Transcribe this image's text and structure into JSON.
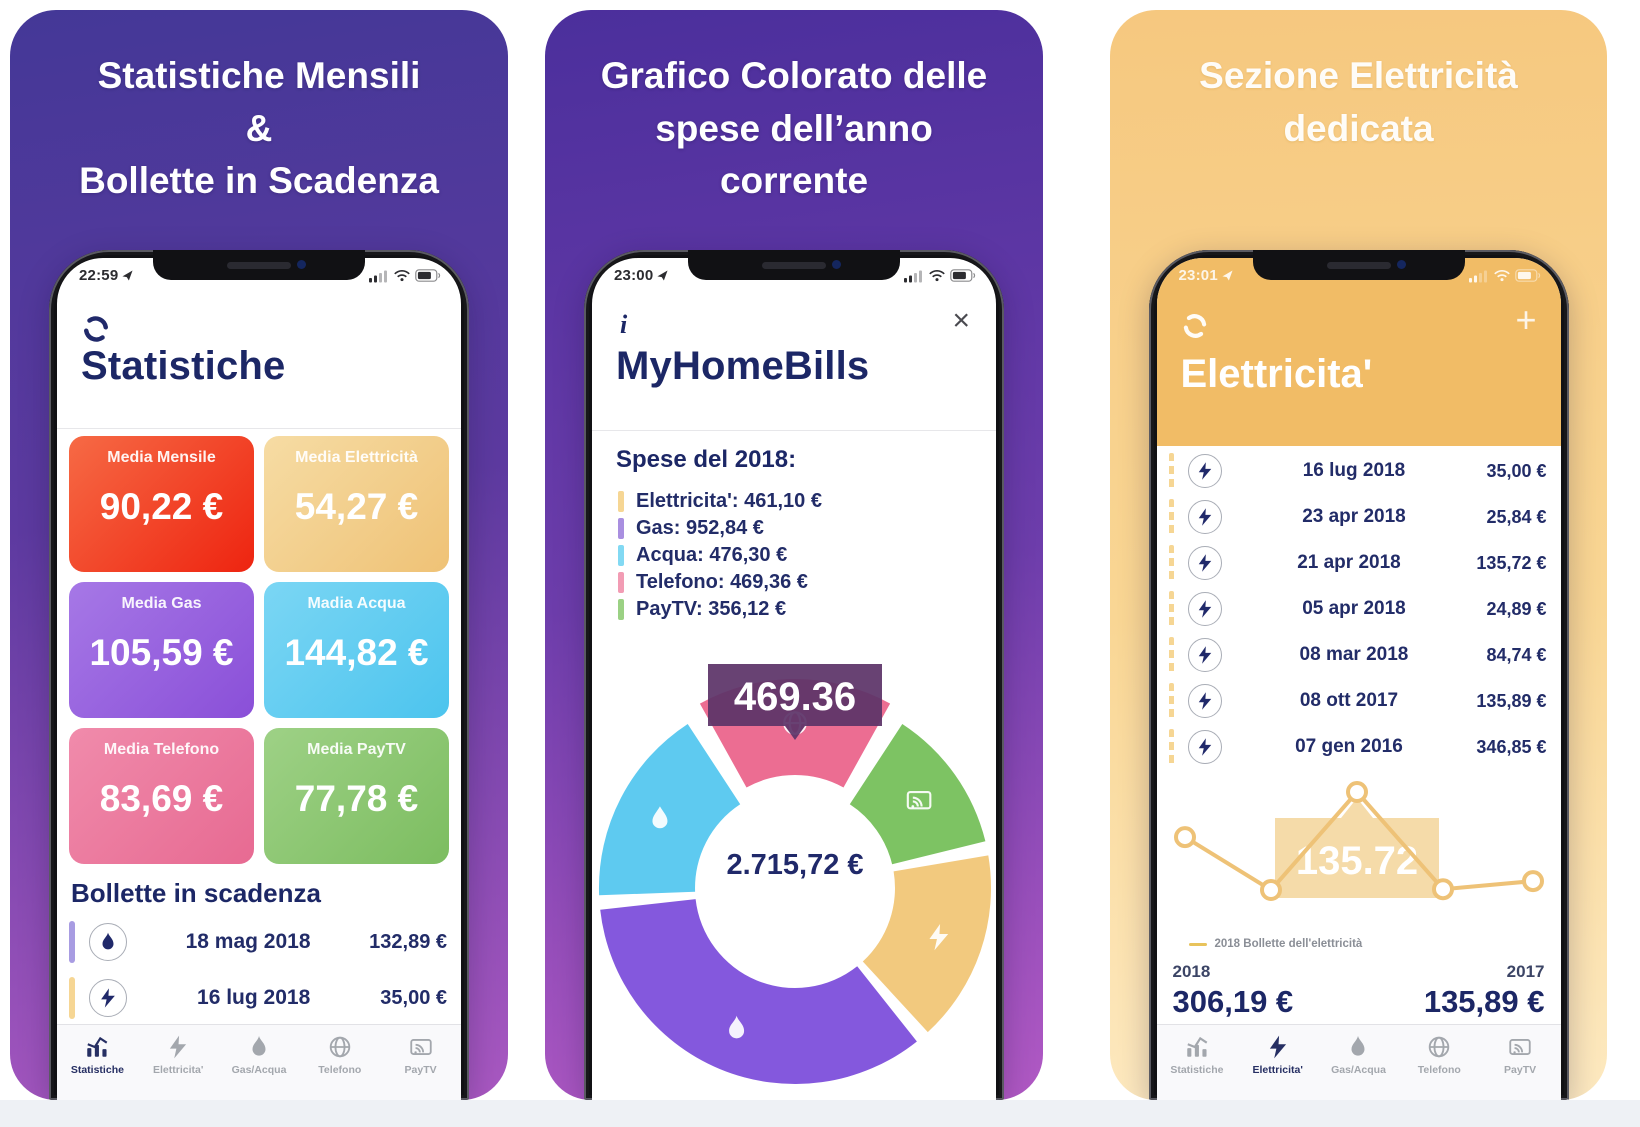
{
  "colors": {
    "navy": "#20296a",
    "tab_active": "#262f63",
    "tab_inactive": "#a3a7ad",
    "accent_yellow": "#eec277"
  },
  "tab_bar_items": [
    {
      "label": "Statistiche",
      "icon": "stats-icon"
    },
    {
      "label": "Elettricita'",
      "icon": "lightning-icon"
    },
    {
      "label": "Gas/Acqua",
      "icon": "flame-icon"
    },
    {
      "label": "Telefono",
      "icon": "globe-icon"
    },
    {
      "label": "PayTV",
      "icon": "tv-icon"
    }
  ],
  "panel1": {
    "headline_lines": [
      "Statistiche Mensili",
      "&",
      "Bollette in Scadenza"
    ],
    "phone": {
      "status_time": "22:59",
      "screen_title": "Statistiche",
      "stat_cards": [
        {
          "label": "Media Mensile",
          "value": "90,22 €",
          "color_top": "#f66a45",
          "color_bottom": "#ee2410"
        },
        {
          "label": "Media Elettricità",
          "value": "54,27 €",
          "color_top": "#f6dca4",
          "color_bottom": "#efc276"
        },
        {
          "label": "Media Gas",
          "value": "105,59 €",
          "color_top": "#a678e6",
          "color_bottom": "#8a4fd8"
        },
        {
          "label": "Madia Acqua",
          "value": "144,82 €",
          "color_top": "#7bd6f4",
          "color_bottom": "#4cc4ee"
        },
        {
          "label": "Media Telefono",
          "value": "83,69 €",
          "color_top": "#f08bab",
          "color_bottom": "#e76a92"
        },
        {
          "label": "Media PayTV",
          "value": "77,78 €",
          "color_top": "#9ed186",
          "color_bottom": "#7cbd60"
        }
      ],
      "section_title": "Bollette in scadenza",
      "due_bills": [
        {
          "icon": "flame-icon",
          "bar_color": "#a89ce2",
          "date": "18 mag 2018",
          "amount": "132,89 €"
        },
        {
          "icon": "lightning-icon",
          "bar_color": "#f6d694",
          "date": "16 lug 2018",
          "amount": "35,00 €"
        }
      ],
      "active_tab": "Statistiche"
    }
  },
  "panel2": {
    "headline_lines": [
      "Grafico Colorato delle",
      "spese dell’anno",
      "corrente"
    ],
    "phone": {
      "status_time": "23:00",
      "info_label": "i",
      "close_label": "×",
      "screen_title": "MyHomeBills",
      "subtitle": "Spese del 2018:",
      "chart_data": {
        "type": "pie",
        "title": "Spese del 2018",
        "donut": true,
        "total_center_label": "2.715,72 €",
        "tooltip_value": "469.36",
        "tooltip_for": "Telefono",
        "legend_position": "top-left",
        "series": [
          {
            "name": "Elettricita'",
            "value": 461.1,
            "legend_label": "Elettricita': 461,10 €",
            "legend_color": "#f6d694",
            "slice_color": "#f2c97e",
            "icon": "lightning-icon"
          },
          {
            "name": "Gas",
            "value": 952.84,
            "legend_label": "Gas: 952,84 €",
            "legend_color": "#a98fe0",
            "slice_color": "#8458dd",
            "icon": "flame-icon"
          },
          {
            "name": "Acqua",
            "value": 476.3,
            "legend_label": "Acqua: 476,30 €",
            "legend_color": "#82d9f3",
            "slice_color": "#5ecaf0",
            "icon": "drop-icon"
          },
          {
            "name": "Telefono",
            "value": 469.36,
            "legend_label": "Telefono: 469,36 €",
            "legend_color": "#f29cb4",
            "slice_color": "#ec6d92",
            "icon": "globe-icon"
          },
          {
            "name": "PayTV",
            "value": 356.12,
            "legend_label": "PayTV: 356,12 €",
            "legend_color": "#9bd184",
            "slice_color": "#7dc363",
            "icon": "tv-icon"
          }
        ],
        "draw_order": [
          3,
          4,
          0,
          1,
          2
        ],
        "exploded_slice": "Telefono"
      }
    }
  },
  "panel3": {
    "headline_lines": [
      "Sezione Elettricità",
      "dedicata"
    ],
    "phone": {
      "status_time": "23:01",
      "screen_title": "Elettricita'",
      "add_label": "+",
      "bills": [
        {
          "date": "16 lug 2018",
          "amount": "35,00 €"
        },
        {
          "date": "23 apr 2018",
          "amount": "25,84 €"
        },
        {
          "date": "21 apr 2018",
          "amount": "135,72 €"
        },
        {
          "date": "05 apr 2018",
          "amount": "24,89 €"
        },
        {
          "date": "08 mar 2018",
          "amount": "84,74 €"
        },
        {
          "date": "08 ott 2017",
          "amount": "135,89 €"
        },
        {
          "date": "07 gen 2016",
          "amount": "346,85 €"
        }
      ],
      "chart_data": {
        "type": "line",
        "series": [
          {
            "name": "2018 Bollette dell'elettricità",
            "values": [
              84.74,
              24.89,
              135.72,
              25.84,
              35.0
            ],
            "color": "#eec277"
          }
        ],
        "tooltip_value": "135.72",
        "x_edge_labels": [
          "2018",
          "2017"
        ],
        "legend": "2018 Bollette dell'elettricità",
        "grid": false
      },
      "totals": {
        "left_year": "2018",
        "left_amount": "306,19 €",
        "right_year": "2017",
        "right_amount": "135,89 €"
      },
      "active_tab": "Elettricita'"
    }
  }
}
